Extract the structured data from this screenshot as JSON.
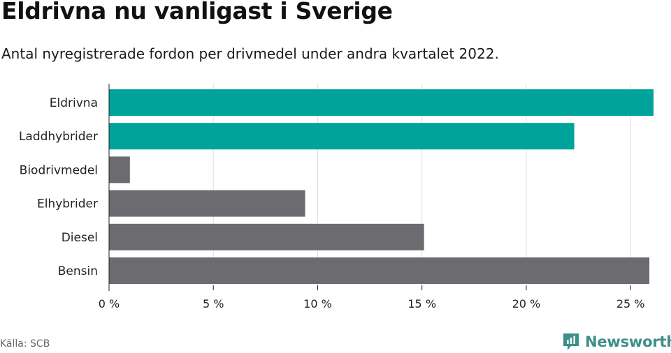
{
  "header": {
    "title": "Eldrivna nu vanligast i Sverige",
    "subtitle": "Antal nyregistrerade fordon per drivmedel under andra kvartalet 2022."
  },
  "footer": {
    "source": "Källa: SCB",
    "brand": "Newsworthy"
  },
  "colors": {
    "highlight": "#00a39a",
    "default": "#6c6b70",
    "gridline": "#dddddd",
    "brand": "#3d8f88"
  },
  "chart_data": {
    "type": "bar",
    "orientation": "horizontal",
    "title": "Eldrivna nu vanligast i Sverige",
    "subtitle": "Antal nyregistrerade fordon per drivmedel under andra kvartalet 2022.",
    "xlabel": "",
    "ylabel": "",
    "categories": [
      "Eldrivna",
      "Laddhybrider",
      "Biodrivmedel",
      "Elhybrider",
      "Diesel",
      "Bensin"
    ],
    "values": [
      26.1,
      22.3,
      1.0,
      9.4,
      15.1,
      25.9
    ],
    "highlighted": [
      "Eldrivna",
      "Laddhybrider"
    ],
    "xlim": [
      0,
      26.2
    ],
    "ticks": [
      0,
      5,
      10,
      15,
      20,
      25
    ],
    "tick_labels": [
      "0 %",
      "5 %",
      "10 %",
      "15 %",
      "20 %",
      "25 %"
    ],
    "grid": "vertical",
    "legend": "none"
  }
}
